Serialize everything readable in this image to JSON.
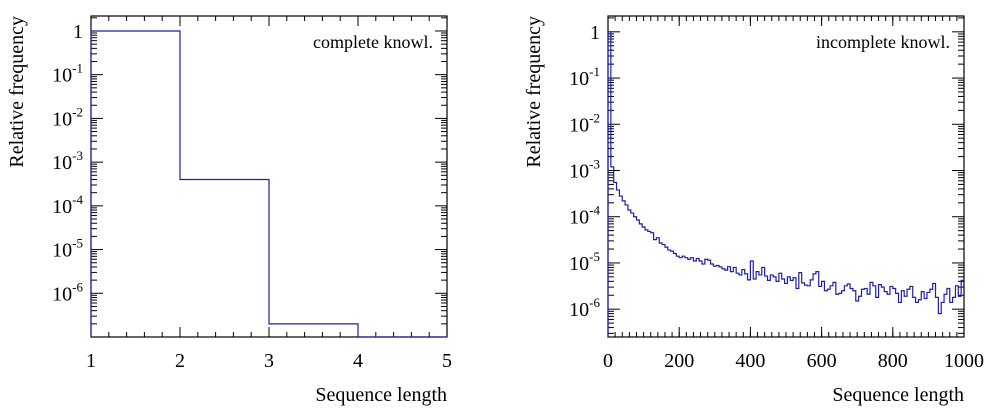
{
  "chart_data": [
    {
      "type": "line",
      "style": "step histogram",
      "annotation": "complete knowl.",
      "xlabel": "Sequence length",
      "ylabel": "Relative frequency",
      "xlim": [
        1,
        5
      ],
      "x_ticks": [
        "1",
        "2",
        "3",
        "4",
        "5"
      ],
      "y_scale": "log",
      "ylim": [
        1e-07,
        2.2
      ],
      "y_ticks": [
        {
          "base": "1",
          "exp": ""
        },
        {
          "base": "10",
          "exp": "-1"
        },
        {
          "base": "10",
          "exp": "-2"
        },
        {
          "base": "10",
          "exp": "-3"
        },
        {
          "base": "10",
          "exp": "-4"
        },
        {
          "base": "10",
          "exp": "-5"
        },
        {
          "base": "10",
          "exp": "-6"
        }
      ],
      "y_tick_values": [
        1,
        0.1,
        0.01,
        0.001,
        0.0001,
        1e-05,
        1e-06
      ],
      "bins": [
        {
          "x0": 1,
          "x1": 2,
          "y": 0.9996
        },
        {
          "x0": 2,
          "x1": 3,
          "y": 0.0004
        },
        {
          "x0": 3,
          "x1": 4,
          "y": 2e-07
        },
        {
          "x0": 4,
          "x1": 5,
          "y": 1e-07
        }
      ],
      "series_color": "#1f1fa0"
    },
    {
      "type": "line",
      "style": "step histogram",
      "annotation": "incomplete knowl.",
      "xlabel": "Sequence length",
      "ylabel": "Relative frequency",
      "xlim": [
        0,
        1000
      ],
      "x_ticks": [
        "0",
        "200",
        "400",
        "600",
        "800",
        "1000"
      ],
      "y_scale": "log",
      "ylim": [
        2.5e-07,
        2.2
      ],
      "y_ticks": [
        {
          "base": "1",
          "exp": ""
        },
        {
          "base": "10",
          "exp": "-1"
        },
        {
          "base": "10",
          "exp": "-2"
        },
        {
          "base": "10",
          "exp": "-3"
        },
        {
          "base": "10",
          "exp": "-4"
        },
        {
          "base": "10",
          "exp": "-5"
        },
        {
          "base": "10",
          "exp": "-6"
        }
      ],
      "y_tick_values": [
        1,
        0.1,
        0.01,
        0.001,
        0.0001,
        1e-05,
        1e-06
      ],
      "bin_width": 8,
      "bin_values": [
        1.0,
        0.0012,
        0.00055,
        0.00038,
        0.00028,
        0.00022,
        0.00018,
        0.00014,
        0.00012,
        0.0001,
        8.5e-05,
        7e-05,
        6e-05,
        5.2e-05,
        4.8e-05,
        4.5e-05,
        3.2e-05,
        3.5e-05,
        2.7e-05,
        2.5e-05,
        2.2e-05,
        1.9e-05,
        1.8e-05,
        1.6e-05,
        1.4e-05,
        1.3e-05,
        1.4e-05,
        1.3e-05,
        1.2e-05,
        1.3e-05,
        1.1e-05,
        1.25e-05,
        1.1e-05,
        9.5e-06,
        1.2e-05,
        1.15e-05,
        9.5e-06,
        8.5e-06,
        8.8e-06,
        8.2e-06,
        7.5e-06,
        7e-06,
        8.3e-06,
        6.5e-06,
        8e-06,
        6e-06,
        5.5e-06,
        7.2e-06,
        5.8e-06,
        4.3e-06,
        1.1e-05,
        4.5e-06,
        6.5e-06,
        5.5e-06,
        8e-06,
        5.2e-06,
        4.2e-06,
        5.5e-06,
        5e-06,
        4e-06,
        6e-06,
        4.5e-06,
        3.6e-06,
        5e-06,
        4.2e-06,
        4.8e-06,
        2.8e-06,
        6.2e-06,
        3.7e-06,
        3.3e-06,
        3.2e-06,
        4.3e-06,
        5.8e-06,
        6.5e-06,
        3.1e-06,
        4e-06,
        2.5e-06,
        2.7e-06,
        3.2e-06,
        3.8e-06,
        2.1e-06,
        2.2e-06,
        2.5e-06,
        3.2e-06,
        3.5e-06,
        2.8e-06,
        2.5e-06,
        1.5e-06,
        1.9e-06,
        2.7e-06,
        2.8e-06,
        2.1e-06,
        3.8e-06,
        3.2e-06,
        1.8e-06,
        3.4e-06,
        3e-06,
        2.4e-06,
        2.1e-06,
        3.1e-06,
        2.8e-06,
        2.2e-06,
        1.4e-06,
        2.5e-06,
        1.9e-06,
        2.7e-06,
        3.1e-06,
        1.8e-06,
        1.4e-06,
        1.6e-06,
        2.4e-06,
        1.7e-06,
        2.3e-06,
        2.7e-06,
        3.6e-06,
        1.8e-06,
        8e-07,
        1.4e-06,
        2.1e-06,
        2.8e-06,
        1.4e-06,
        1.8e-06,
        3.2e-06,
        1.9e-06,
        4.2e-06
      ],
      "series_color": "#1f1fa0"
    }
  ]
}
